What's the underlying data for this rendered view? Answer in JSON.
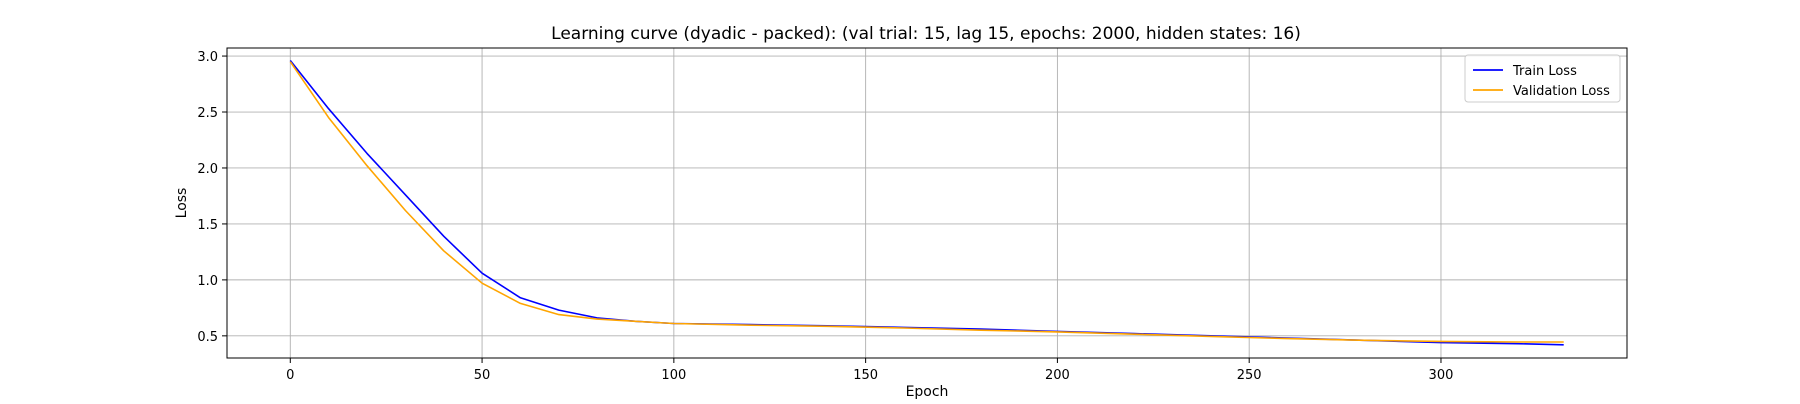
{
  "chart_data": {
    "type": "line",
    "title": "Learning curve (dyadic - packed): (val trial: 15, lag 15, epochs: 2000, hidden states: 16)",
    "xlabel": "Epoch",
    "ylabel": "Loss",
    "xlim": [
      -16.5,
      348.5
    ],
    "ylim": [
      0.302,
      3.072
    ],
    "xticks": [
      0,
      50,
      100,
      150,
      200,
      250,
      300
    ],
    "yticks": [
      0.5,
      1.0,
      1.5,
      2.0,
      2.5,
      3.0
    ],
    "xtick_labels": [
      "0",
      "50",
      "100",
      "150",
      "200",
      "250",
      "300"
    ],
    "ytick_labels": [
      "0.5",
      "1.0",
      "1.5",
      "2.0",
      "2.5",
      "3.0"
    ],
    "grid": true,
    "legend_position": "top-right",
    "series": [
      {
        "name": "Train Loss",
        "color": "#0000ff",
        "x": [
          0,
          10,
          20,
          30,
          40,
          50,
          60,
          70,
          80,
          90,
          100,
          120,
          140,
          160,
          180,
          200,
          220,
          240,
          260,
          280,
          300,
          320,
          332
        ],
        "y": [
          2.96,
          2.53,
          2.13,
          1.76,
          1.39,
          1.06,
          0.84,
          0.73,
          0.66,
          0.63,
          0.61,
          0.6,
          0.59,
          0.575,
          0.56,
          0.54,
          0.52,
          0.5,
          0.48,
          0.46,
          0.44,
          0.43,
          0.42
        ]
      },
      {
        "name": "Validation Loss",
        "color": "#ffa500",
        "x": [
          0,
          10,
          20,
          30,
          40,
          50,
          60,
          70,
          80,
          90,
          100,
          120,
          140,
          160,
          180,
          200,
          220,
          240,
          260,
          280,
          300,
          320,
          332
        ],
        "y": [
          2.95,
          2.45,
          2.02,
          1.62,
          1.26,
          0.97,
          0.79,
          0.69,
          0.65,
          0.63,
          0.61,
          0.595,
          0.585,
          0.57,
          0.55,
          0.535,
          0.515,
          0.495,
          0.475,
          0.46,
          0.45,
          0.445,
          0.445
        ]
      }
    ]
  }
}
